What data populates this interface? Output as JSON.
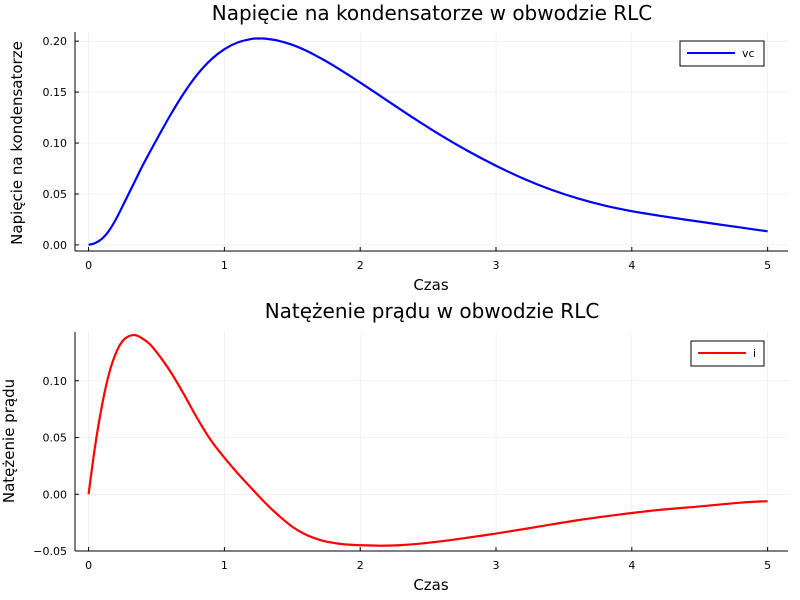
{
  "chart_data": [
    {
      "type": "line",
      "title": "Napięcie na kondensatorze w obwodzie RLC",
      "xlabel": "Czas",
      "ylabel": "Napięcie na kondensatorze",
      "xlim": [
        -0.1,
        5.15
      ],
      "ylim": [
        -0.006,
        0.209
      ],
      "xticks": [
        0,
        1,
        2,
        3,
        4,
        5
      ],
      "xtick_labels": [
        "0",
        "1",
        "2",
        "3",
        "4",
        "5"
      ],
      "yticks": [
        0,
        0.05,
        0.1,
        0.15,
        0.2
      ],
      "ytick_labels": [
        "0.00",
        "0.05",
        "0.10",
        "0.15",
        "0.20"
      ],
      "grid": true,
      "legend_position": "top-right",
      "series": [
        {
          "name": "vc",
          "color": "#0000ff",
          "x": [
            0,
            0.05,
            0.1,
            0.15,
            0.2,
            0.25,
            0.3,
            0.35,
            0.4,
            0.5,
            0.6,
            0.7,
            0.8,
            0.9,
            1.0,
            1.1,
            1.2,
            1.25,
            1.3,
            1.4,
            1.5,
            1.6,
            1.7,
            1.8,
            2.0,
            2.2,
            2.4,
            2.6,
            2.8,
            3.0,
            3.2,
            3.4,
            3.6,
            3.8,
            4.0,
            4.2,
            4.4,
            4.6,
            4.8,
            5.0
          ],
          "y": [
            0.0,
            0.0019,
            0.0062,
            0.0139,
            0.0248,
            0.0379,
            0.0514,
            0.0649,
            0.0784,
            0.1031,
            0.1269,
            0.1486,
            0.1672,
            0.1817,
            0.1921,
            0.1988,
            0.2022,
            0.2026,
            0.2025,
            0.2004,
            0.1964,
            0.1908,
            0.1839,
            0.1763,
            0.1594,
            0.1416,
            0.1239,
            0.1071,
            0.0917,
            0.0777,
            0.0652,
            0.0545,
            0.0457,
            0.0386,
            0.0331,
            0.0287,
            0.0247,
            0.0209,
            0.0171,
            0.0133
          ]
        }
      ]
    },
    {
      "type": "line",
      "title": "Natężenie prądu w obwodzie RLC",
      "xlabel": "Czas",
      "ylabel": "Natężenie prądu",
      "xlim": [
        -0.1,
        5.15
      ],
      "ylim": [
        -0.05,
        0.143
      ],
      "xticks": [
        0,
        1,
        2,
        3,
        4,
        5
      ],
      "xtick_labels": [
        "0",
        "1",
        "2",
        "3",
        "4",
        "5"
      ],
      "yticks": [
        -0.05,
        0,
        0.05,
        0.1
      ],
      "ytick_labels": [
        "−0.05",
        "0.00",
        "0.05",
        "0.10"
      ],
      "grid": true,
      "legend_position": "top-right",
      "series": [
        {
          "name": "i",
          "color": "#ff0000",
          "x": [
            0,
            0.05,
            0.1,
            0.15,
            0.2,
            0.25,
            0.3,
            0.35,
            0.4,
            0.45,
            0.5,
            0.6,
            0.7,
            0.8,
            0.9,
            1.0,
            1.1,
            1.2,
            1.3,
            1.4,
            1.5,
            1.6,
            1.7,
            1.8,
            1.9,
            2.0,
            2.15,
            2.3,
            2.5,
            2.7,
            3.0,
            3.3,
            3.6,
            3.9,
            4.2,
            4.5,
            4.8,
            5.0
          ],
          "y": [
            0.0,
            0.044,
            0.079,
            0.106,
            0.124,
            0.135,
            0.1395,
            0.1401,
            0.137,
            0.1324,
            0.1254,
            0.1086,
            0.0885,
            0.0669,
            0.0477,
            0.0322,
            0.0182,
            0.0052,
            -0.0075,
            -0.0188,
            -0.0286,
            -0.0356,
            -0.0401,
            -0.0428,
            -0.0443,
            -0.0449,
            -0.0453,
            -0.0448,
            -0.0428,
            -0.0398,
            -0.0346,
            -0.0288,
            -0.0229,
            -0.018,
            -0.0138,
            -0.0107,
            -0.0074,
            -0.0061
          ]
        }
      ]
    }
  ]
}
